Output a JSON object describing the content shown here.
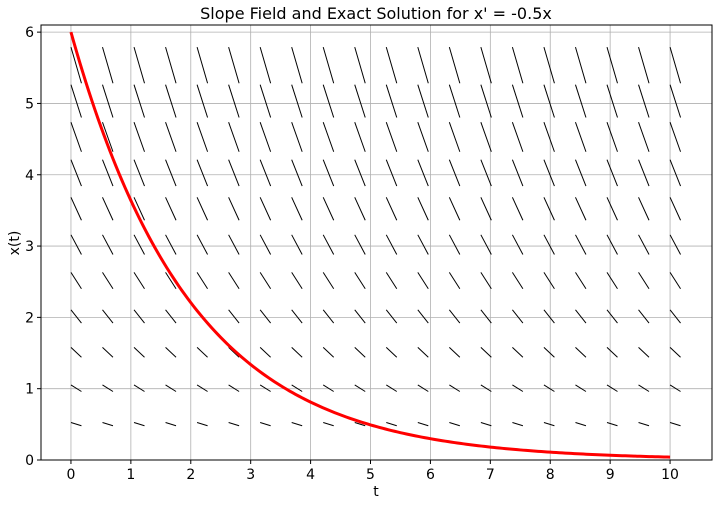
{
  "chart_data": {
    "type": "line",
    "title": "Slope Field and Exact Solution for x' = -0.5x",
    "xlabel": "t",
    "ylabel": "x(t)",
    "xlim": [
      -0.5,
      10.7
    ],
    "ylim": [
      0,
      6.1
    ],
    "xticks": [
      "0",
      "1",
      "2",
      "3",
      "4",
      "5",
      "6",
      "7",
      "8",
      "9",
      "10"
    ],
    "yticks": [
      "0",
      "1",
      "2",
      "3",
      "4",
      "5",
      "6"
    ],
    "grid": true,
    "slope_field": {
      "equation": "x' = -0.5x",
      "k": -0.5,
      "t_range": [
        0,
        10
      ],
      "x_range": [
        0,
        10
      ],
      "points_per_axis": 20,
      "color": "#000000"
    },
    "series": [
      {
        "function": "x(t) = 6 e^{-0.5t}",
        "x0": 6,
        "t_range": [
          0,
          10
        ],
        "color": "#ff0000"
      }
    ]
  }
}
